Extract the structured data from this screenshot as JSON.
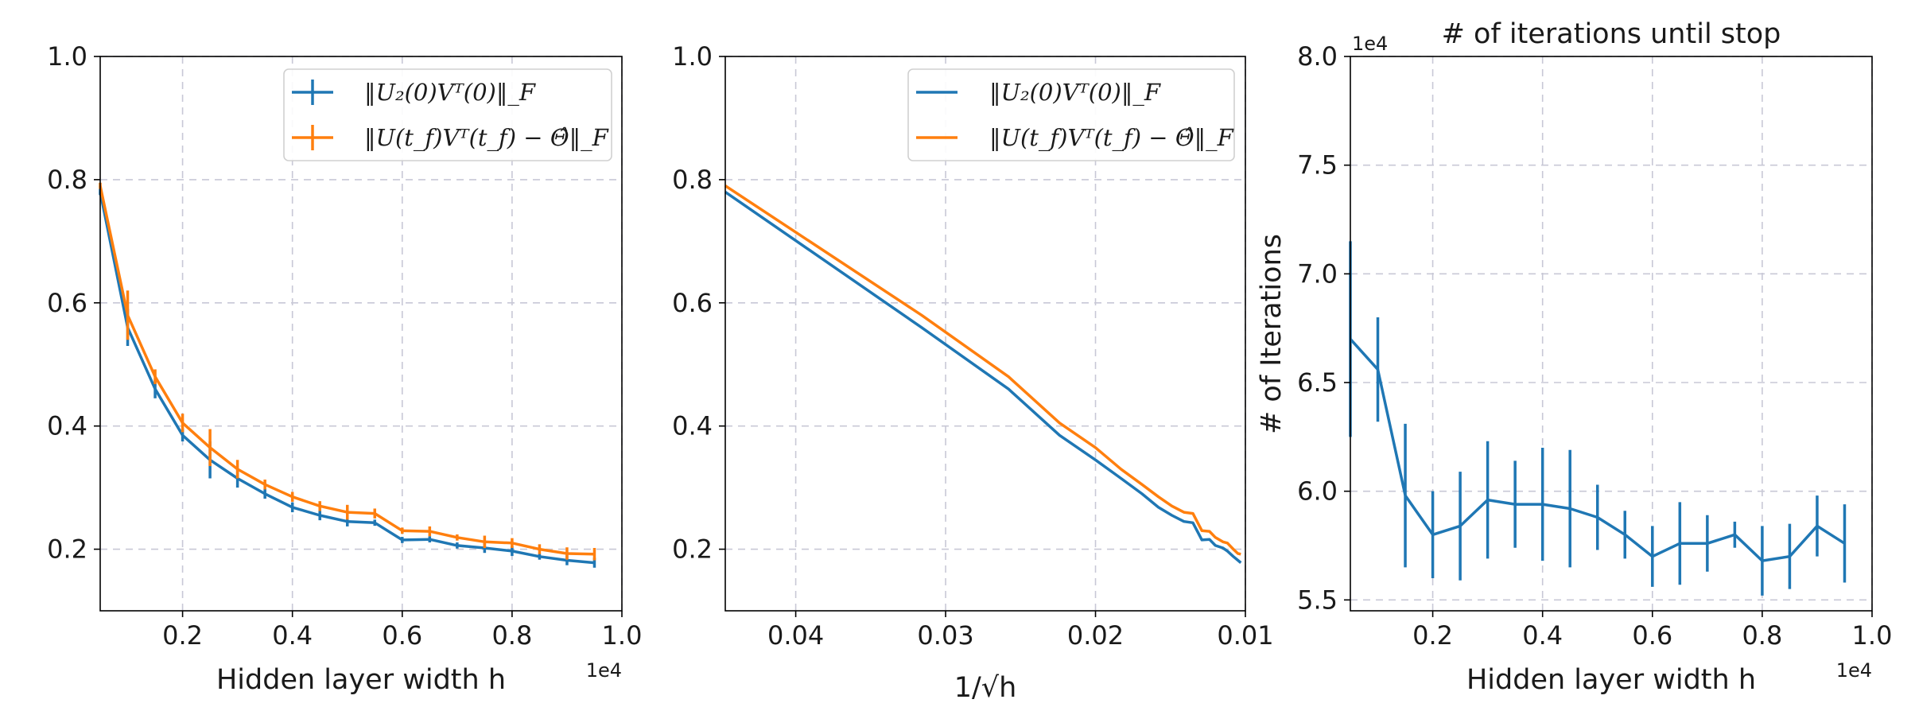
{
  "colors": {
    "series_blue": "#1f77b4",
    "series_orange": "#ff7f0e"
  },
  "chart_data": [
    {
      "type": "line",
      "error_bars": true,
      "xlabel": "Hidden layer width h",
      "x_multiplier": "1e4",
      "xlim": [
        500,
        10000
      ],
      "ylim": [
        0.1,
        1.0
      ],
      "xticks": [
        2000,
        4000,
        6000,
        8000,
        10000
      ],
      "xtick_labels": [
        "0.2",
        "0.4",
        "0.6",
        "0.8",
        "1.0"
      ],
      "yticks": [
        0.2,
        0.4,
        0.6,
        0.8,
        1.0
      ],
      "ytick_labels": [
        "0.2",
        "0.4",
        "0.6",
        "0.8",
        "1.0"
      ],
      "grid": true,
      "legend_position": "top-right",
      "x": [
        500,
        1000,
        1500,
        2000,
        2500,
        3000,
        3500,
        4000,
        4500,
        5000,
        5500,
        6000,
        6500,
        7000,
        7500,
        8000,
        8500,
        9000,
        9500
      ],
      "series": [
        {
          "name": "‖U₂(0)Vᵀ(0)‖_F",
          "values": [
            0.78,
            0.56,
            0.46,
            0.385,
            0.345,
            0.315,
            0.29,
            0.268,
            0.255,
            0.245,
            0.243,
            0.215,
            0.216,
            0.206,
            0.202,
            0.197,
            0.188,
            0.182,
            0.178
          ],
          "errors": [
            0.005,
            0.03,
            0.015,
            0.01,
            0.03,
            0.015,
            0.008,
            0.008,
            0.008,
            0.008,
            0.005,
            0.005,
            0.005,
            0.005,
            0.008,
            0.008,
            0.005,
            0.008,
            0.008
          ]
        },
        {
          "name": "‖U(t_f)Vᵀ(t_f) − Θ̂‖_F",
          "values": [
            0.79,
            0.58,
            0.48,
            0.405,
            0.365,
            0.33,
            0.305,
            0.285,
            0.27,
            0.26,
            0.258,
            0.23,
            0.229,
            0.219,
            0.212,
            0.21,
            0.2,
            0.193,
            0.192
          ],
          "errors": [
            0.005,
            0.04,
            0.012,
            0.015,
            0.03,
            0.015,
            0.008,
            0.008,
            0.008,
            0.012,
            0.008,
            0.005,
            0.008,
            0.005,
            0.01,
            0.008,
            0.008,
            0.01,
            0.01
          ]
        }
      ]
    },
    {
      "type": "line",
      "xlabel": "1/√h",
      "x_axis_reversed": true,
      "xlim": [
        0.0447,
        0.01
      ],
      "ylim": [
        0.1,
        1.0
      ],
      "xticks": [
        0.04,
        0.03,
        0.02,
        0.01
      ],
      "xtick_labels": [
        "0.04",
        "0.03",
        "0.02",
        "0.01"
      ],
      "yticks": [
        0.2,
        0.4,
        0.6,
        0.8,
        1.0
      ],
      "ytick_labels": [
        "0.2",
        "0.4",
        "0.6",
        "0.8",
        "1.0"
      ],
      "grid": true,
      "legend_position": "top-right",
      "x": [
        0.0447,
        0.0316,
        0.0258,
        0.0224,
        0.02,
        0.0183,
        0.0169,
        0.0158,
        0.0149,
        0.0141,
        0.0135,
        0.0129,
        0.0124,
        0.012,
        0.0115,
        0.0112,
        0.0108,
        0.0105,
        0.0103
      ],
      "series": [
        {
          "name": "‖U₂(0)Vᵀ(0)‖_F",
          "values": [
            0.78,
            0.56,
            0.46,
            0.385,
            0.345,
            0.315,
            0.29,
            0.268,
            0.255,
            0.245,
            0.243,
            0.215,
            0.216,
            0.206,
            0.202,
            0.197,
            0.188,
            0.182,
            0.178
          ]
        },
        {
          "name": "‖U(t_f)Vᵀ(t_f) − Θ̂‖_F",
          "values": [
            0.79,
            0.58,
            0.48,
            0.405,
            0.365,
            0.33,
            0.305,
            0.285,
            0.27,
            0.26,
            0.258,
            0.23,
            0.229,
            0.219,
            0.212,
            0.21,
            0.2,
            0.193,
            0.192
          ]
        }
      ]
    },
    {
      "type": "line",
      "error_bars": true,
      "title": "# of iterations until stop",
      "xlabel": "Hidden layer width h",
      "ylabel": "# of Iterations",
      "x_multiplier": "1e4",
      "y_multiplier": "1e4",
      "xlim": [
        500,
        10000
      ],
      "ylim": [
        54500,
        80000
      ],
      "xticks": [
        2000,
        4000,
        6000,
        8000,
        10000
      ],
      "xtick_labels": [
        "0.2",
        "0.4",
        "0.6",
        "0.8",
        "1.0"
      ],
      "yticks": [
        55000,
        60000,
        65000,
        70000,
        75000,
        80000
      ],
      "ytick_labels": [
        "5.5",
        "6.0",
        "6.5",
        "7.0",
        "7.5",
        "8.0"
      ],
      "grid": true,
      "x": [
        500,
        1000,
        1500,
        2000,
        2500,
        3000,
        3500,
        4000,
        4500,
        5000,
        5500,
        6000,
        6500,
        7000,
        7500,
        8000,
        8500,
        9000,
        9500
      ],
      "series": [
        {
          "values": [
            67000,
            65600,
            59800,
            58000,
            58400,
            59600,
            59400,
            59400,
            59200,
            58800,
            58000,
            57000,
            57600,
            57600,
            58000,
            56800,
            57000,
            58400,
            57600
          ],
          "errors": [
            4500,
            2400,
            3300,
            2000,
            2500,
            2700,
            2000,
            2600,
            2700,
            1500,
            1100,
            1400,
            1900,
            1300,
            600,
            1600,
            1500,
            1400,
            1800
          ]
        }
      ]
    }
  ]
}
